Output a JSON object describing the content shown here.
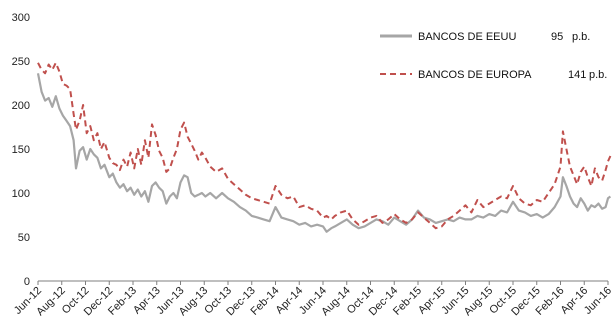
{
  "chart_data": {
    "type": "line",
    "ylim": [
      0,
      300
    ],
    "yticks": [
      0,
      50,
      100,
      150,
      200,
      250,
      300
    ],
    "grid": false,
    "legend_position": "top-right",
    "xrange": [
      0,
      48
    ],
    "xticks": [
      {
        "label": "Jun-12",
        "x": 0
      },
      {
        "label": "Aug-12",
        "x": 2
      },
      {
        "label": "Oct-12",
        "x": 4
      },
      {
        "label": "Dec-12",
        "x": 6
      },
      {
        "label": "Feb-13",
        "x": 8
      },
      {
        "label": "Apr-13",
        "x": 10
      },
      {
        "label": "Jun-13",
        "x": 12
      },
      {
        "label": "Aug-13",
        "x": 14
      },
      {
        "label": "Oct-13",
        "x": 16
      },
      {
        "label": "Dec-13",
        "x": 18
      },
      {
        "label": "Feb-14",
        "x": 20
      },
      {
        "label": "Apr-14",
        "x": 22
      },
      {
        "label": "Jun-14",
        "x": 24
      },
      {
        "label": "Aug-14",
        "x": 26
      },
      {
        "label": "Oct-14",
        "x": 28
      },
      {
        "label": "Dec-14",
        "x": 30
      },
      {
        "label": "Feb-15",
        "x": 32
      },
      {
        "label": "Apr-15",
        "x": 34
      },
      {
        "label": "Jun-15",
        "x": 36
      },
      {
        "label": "Aug-15",
        "x": 38
      },
      {
        "label": "Oct-15",
        "x": 40
      },
      {
        "label": "Dec-15",
        "x": 42
      },
      {
        "label": "Feb-16",
        "x": 44
      },
      {
        "label": "Apr-16",
        "x": 46
      },
      {
        "label": "Jun-16",
        "x": 48
      }
    ],
    "series": [
      {
        "name": "BANCOS DE EEUU",
        "end_value": "95",
        "unit": "p.b.",
        "color": "#a6a6a6",
        "dash": "solid",
        "x": [
          0,
          0.3,
          0.6,
          0.9,
          1.2,
          1.5,
          1.8,
          2.1,
          2.4,
          2.7,
          3.0,
          3.2,
          3.5,
          3.8,
          4.1,
          4.4,
          4.7,
          5.0,
          5.3,
          5.6,
          6.0,
          6.3,
          6.6,
          6.9,
          7.2,
          7.5,
          7.8,
          8.1,
          8.4,
          8.7,
          9.0,
          9.3,
          9.6,
          9.9,
          10.2,
          10.5,
          10.8,
          11.1,
          11.4,
          11.7,
          12.0,
          12.3,
          12.6,
          12.9,
          13.2,
          13.5,
          13.8,
          14.1,
          14.5,
          15.0,
          15.5,
          16.0,
          16.5,
          17.0,
          17.5,
          18.0,
          18.5,
          19.0,
          19.5,
          20.0,
          20.5,
          21.0,
          21.5,
          22.0,
          22.5,
          23.0,
          23.5,
          24.0,
          24.3,
          24.7,
          25.0,
          25.5,
          26.0,
          26.5,
          27.0,
          27.5,
          28.0,
          28.5,
          29.0,
          29.5,
          30.0,
          30.5,
          31.0,
          31.5,
          32.0,
          32.5,
          33.0,
          33.5,
          34.0,
          34.5,
          35.0,
          35.5,
          36.0,
          36.5,
          37.0,
          37.5,
          38.0,
          38.5,
          39.0,
          39.5,
          40.0,
          40.5,
          41.0,
          41.5,
          42.0,
          42.5,
          43.0,
          43.5,
          44.0,
          44.2,
          44.5,
          44.8,
          45.1,
          45.4,
          45.7,
          46.0,
          46.3,
          46.6,
          46.9,
          47.2,
          47.5,
          47.8,
          48.0,
          48.2
        ],
        "y": [
          236,
          215,
          205,
          208,
          198,
          210,
          196,
          188,
          182,
          176,
          160,
          128,
          148,
          152,
          138,
          150,
          144,
          140,
          128,
          132,
          118,
          122,
          112,
          106,
          110,
          102,
          106,
          98,
          104,
          96,
          102,
          90,
          108,
          112,
          106,
          102,
          88,
          96,
          100,
          94,
          112,
          120,
          118,
          100,
          96,
          98,
          100,
          96,
          100,
          94,
          100,
          94,
          90,
          84,
          80,
          74,
          72,
          70,
          68,
          84,
          72,
          70,
          68,
          64,
          66,
          62,
          64,
          62,
          56,
          60,
          62,
          66,
          70,
          64,
          60,
          62,
          66,
          70,
          68,
          64,
          72,
          68,
          64,
          70,
          80,
          72,
          70,
          66,
          68,
          70,
          68,
          72,
          70,
          70,
          74,
          72,
          76,
          74,
          80,
          78,
          90,
          80,
          78,
          74,
          76,
          72,
          76,
          84,
          96,
          118,
          108,
          96,
          88,
          84,
          94,
          88,
          80,
          86,
          84,
          88,
          82,
          84,
          94,
          96
        ]
      },
      {
        "name": "BANCOS DE EUROPA",
        "end_value": "141",
        "unit": "p.b.",
        "color": "#c0504d",
        "dash": "dashed",
        "x": [
          0,
          0.3,
          0.6,
          0.9,
          1.2,
          1.5,
          1.8,
          2.1,
          2.4,
          2.7,
          3.0,
          3.2,
          3.5,
          3.8,
          4.1,
          4.4,
          4.7,
          5.0,
          5.3,
          5.6,
          6.0,
          6.3,
          6.6,
          6.9,
          7.2,
          7.5,
          7.8,
          8.1,
          8.4,
          8.7,
          9.0,
          9.3,
          9.6,
          9.9,
          10.2,
          10.5,
          10.8,
          11.1,
          11.4,
          11.7,
          12.0,
          12.3,
          12.6,
          12.9,
          13.2,
          13.5,
          13.8,
          14.1,
          14.5,
          15.0,
          15.5,
          16.0,
          16.5,
          17.0,
          17.5,
          18.0,
          18.5,
          19.0,
          19.5,
          20.0,
          20.5,
          21.0,
          21.5,
          22.0,
          22.5,
          23.0,
          23.5,
          24.0,
          24.3,
          24.7,
          25.0,
          25.5,
          26.0,
          26.5,
          27.0,
          27.5,
          28.0,
          28.5,
          29.0,
          29.5,
          30.0,
          30.5,
          31.0,
          31.5,
          32.0,
          32.5,
          33.0,
          33.5,
          34.0,
          34.5,
          35.0,
          35.5,
          36.0,
          36.5,
          37.0,
          37.5,
          38.0,
          38.5,
          39.0,
          39.5,
          40.0,
          40.5,
          41.0,
          41.5,
          42.0,
          42.5,
          43.0,
          43.5,
          44.0,
          44.2,
          44.5,
          44.8,
          45.1,
          45.4,
          45.7,
          46.0,
          46.3,
          46.6,
          46.9,
          47.2,
          47.5,
          47.8,
          48.0,
          48.2
        ],
        "y": [
          248,
          240,
          236,
          246,
          240,
          248,
          238,
          224,
          222,
          218,
          190,
          172,
          182,
          200,
          168,
          176,
          160,
          168,
          150,
          158,
          140,
          134,
          132,
          126,
          138,
          130,
          146,
          128,
          150,
          132,
          160,
          140,
          178,
          166,
          148,
          140,
          124,
          128,
          140,
          150,
          172,
          180,
          164,
          156,
          148,
          138,
          146,
          140,
          130,
          124,
          128,
          116,
          110,
          104,
          98,
          94,
          92,
          90,
          88,
          108,
          98,
          94,
          96,
          84,
          86,
          82,
          80,
          72,
          74,
          70,
          74,
          78,
          80,
          70,
          64,
          68,
          72,
          74,
          66,
          70,
          76,
          70,
          66,
          70,
          78,
          72,
          66,
          60,
          62,
          70,
          74,
          80,
          86,
          78,
          92,
          84,
          88,
          92,
          96,
          94,
          108,
          94,
          88,
          86,
          92,
          90,
          100,
          110,
          130,
          170,
          150,
          130,
          120,
          110,
          124,
          130,
          118,
          108,
          128,
          118,
          114,
          126,
          136,
          142
        ]
      }
    ]
  }
}
